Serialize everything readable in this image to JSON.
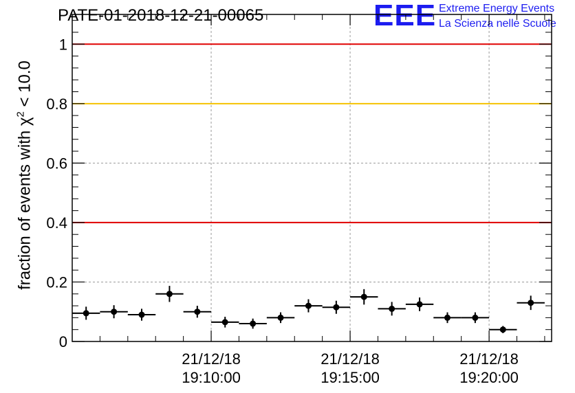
{
  "chart_data": {
    "type": "scatter",
    "title": "PATE-01-2018-12-21-00065",
    "ylabel": {
      "prefix": "fraction of events with ",
      "symbol": "χ",
      "sup": "2",
      "suffix": " < 10.0"
    },
    "xlabel": "",
    "ylim": [
      0,
      1.1
    ],
    "xlim": [
      "19:05:00",
      "19:22:15"
    ],
    "grid": true,
    "y_ticks": [
      "0",
      "0.2",
      "0.4",
      "0.6",
      "0.8",
      "1"
    ],
    "x_ticks": [
      {
        "date": "21/12/18",
        "time": "19:10:00"
      },
      {
        "date": "21/12/18",
        "time": "19:15:00"
      },
      {
        "date": "21/12/18",
        "time": "19:20:00"
      }
    ],
    "reference_lines": [
      {
        "y": 1.0,
        "color": "#e00000"
      },
      {
        "y": 0.8,
        "color": "#f5c200"
      },
      {
        "y": 0.4,
        "color": "#e00000"
      }
    ],
    "bin_width_min": 1.0,
    "points": [
      {
        "t": "19:05:30",
        "y": 0.095,
        "err": 0.022
      },
      {
        "t": "19:06:30",
        "y": 0.1,
        "err": 0.022
      },
      {
        "t": "19:07:30",
        "y": 0.09,
        "err": 0.02
      },
      {
        "t": "19:08:30",
        "y": 0.16,
        "err": 0.027
      },
      {
        "t": "19:09:30",
        "y": 0.1,
        "err": 0.02
      },
      {
        "t": "19:10:30",
        "y": 0.065,
        "err": 0.018
      },
      {
        "t": "19:11:30",
        "y": 0.06,
        "err": 0.017
      },
      {
        "t": "19:12:30",
        "y": 0.08,
        "err": 0.018
      },
      {
        "t": "19:13:30",
        "y": 0.12,
        "err": 0.022
      },
      {
        "t": "19:14:30",
        "y": 0.115,
        "err": 0.022
      },
      {
        "t": "19:15:30",
        "y": 0.15,
        "err": 0.026
      },
      {
        "t": "19:16:30",
        "y": 0.11,
        "err": 0.023
      },
      {
        "t": "19:17:30",
        "y": 0.125,
        "err": 0.023
      },
      {
        "t": "19:18:30",
        "y": 0.08,
        "err": 0.018
      },
      {
        "t": "19:19:30",
        "y": 0.08,
        "err": 0.018
      },
      {
        "t": "19:20:30",
        "y": 0.04,
        "err": 0.012
      },
      {
        "t": "19:21:30",
        "y": 0.13,
        "err": 0.024
      }
    ]
  },
  "logo": {
    "mark": "EEE",
    "line1": "Extreme Energy Events",
    "line2": "La Scienza nelle Scuole",
    "color": "#1c1cf0"
  }
}
